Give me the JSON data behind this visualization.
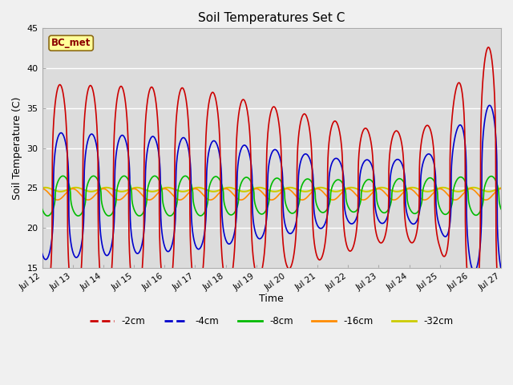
{
  "title": "Soil Temperatures Set C",
  "xlabel": "Time",
  "ylabel": "Soil Temperature (C)",
  "ylim": [
    15,
    45
  ],
  "xlim": [
    0,
    15
  ],
  "annotation": "BC_met",
  "annotation_color": "#8B0000",
  "annotation_bg": "#FFFF99",
  "annotation_border": "#8B6914",
  "background_inner": "#DCDCDC",
  "background_outer": "#F0F0F0",
  "series_2cm_color": "#CC0000",
  "series_4cm_color": "#0000CC",
  "series_8cm_color": "#00BB00",
  "series_16cm_color": "#FF8C00",
  "series_32cm_color": "#CCCC00",
  "line_width": 1.2,
  "xtick_labels": [
    "Jul 12",
    "Jul 13",
    "Jul 14",
    "Jul 15",
    "Jul 16",
    "Jul 17",
    "Jul 18",
    "Jul 19",
    "Jul 20",
    "Jul 21",
    "Jul 22",
    "Jul 23",
    "Jul 24",
    "Jul 25",
    "Jul 26",
    "Jul 27"
  ],
  "ytick_positions": [
    15,
    20,
    25,
    30,
    35,
    40,
    45
  ],
  "legend_labels": [
    "-2cm",
    "-4cm",
    "-8cm",
    "-16cm",
    "-32cm"
  ],
  "legend_colors": [
    "#CC0000",
    "#0000CC",
    "#00BB00",
    "#FF8C00",
    "#CCCC00"
  ],
  "figsize": [
    6.4,
    4.8
  ],
  "dpi": 100
}
